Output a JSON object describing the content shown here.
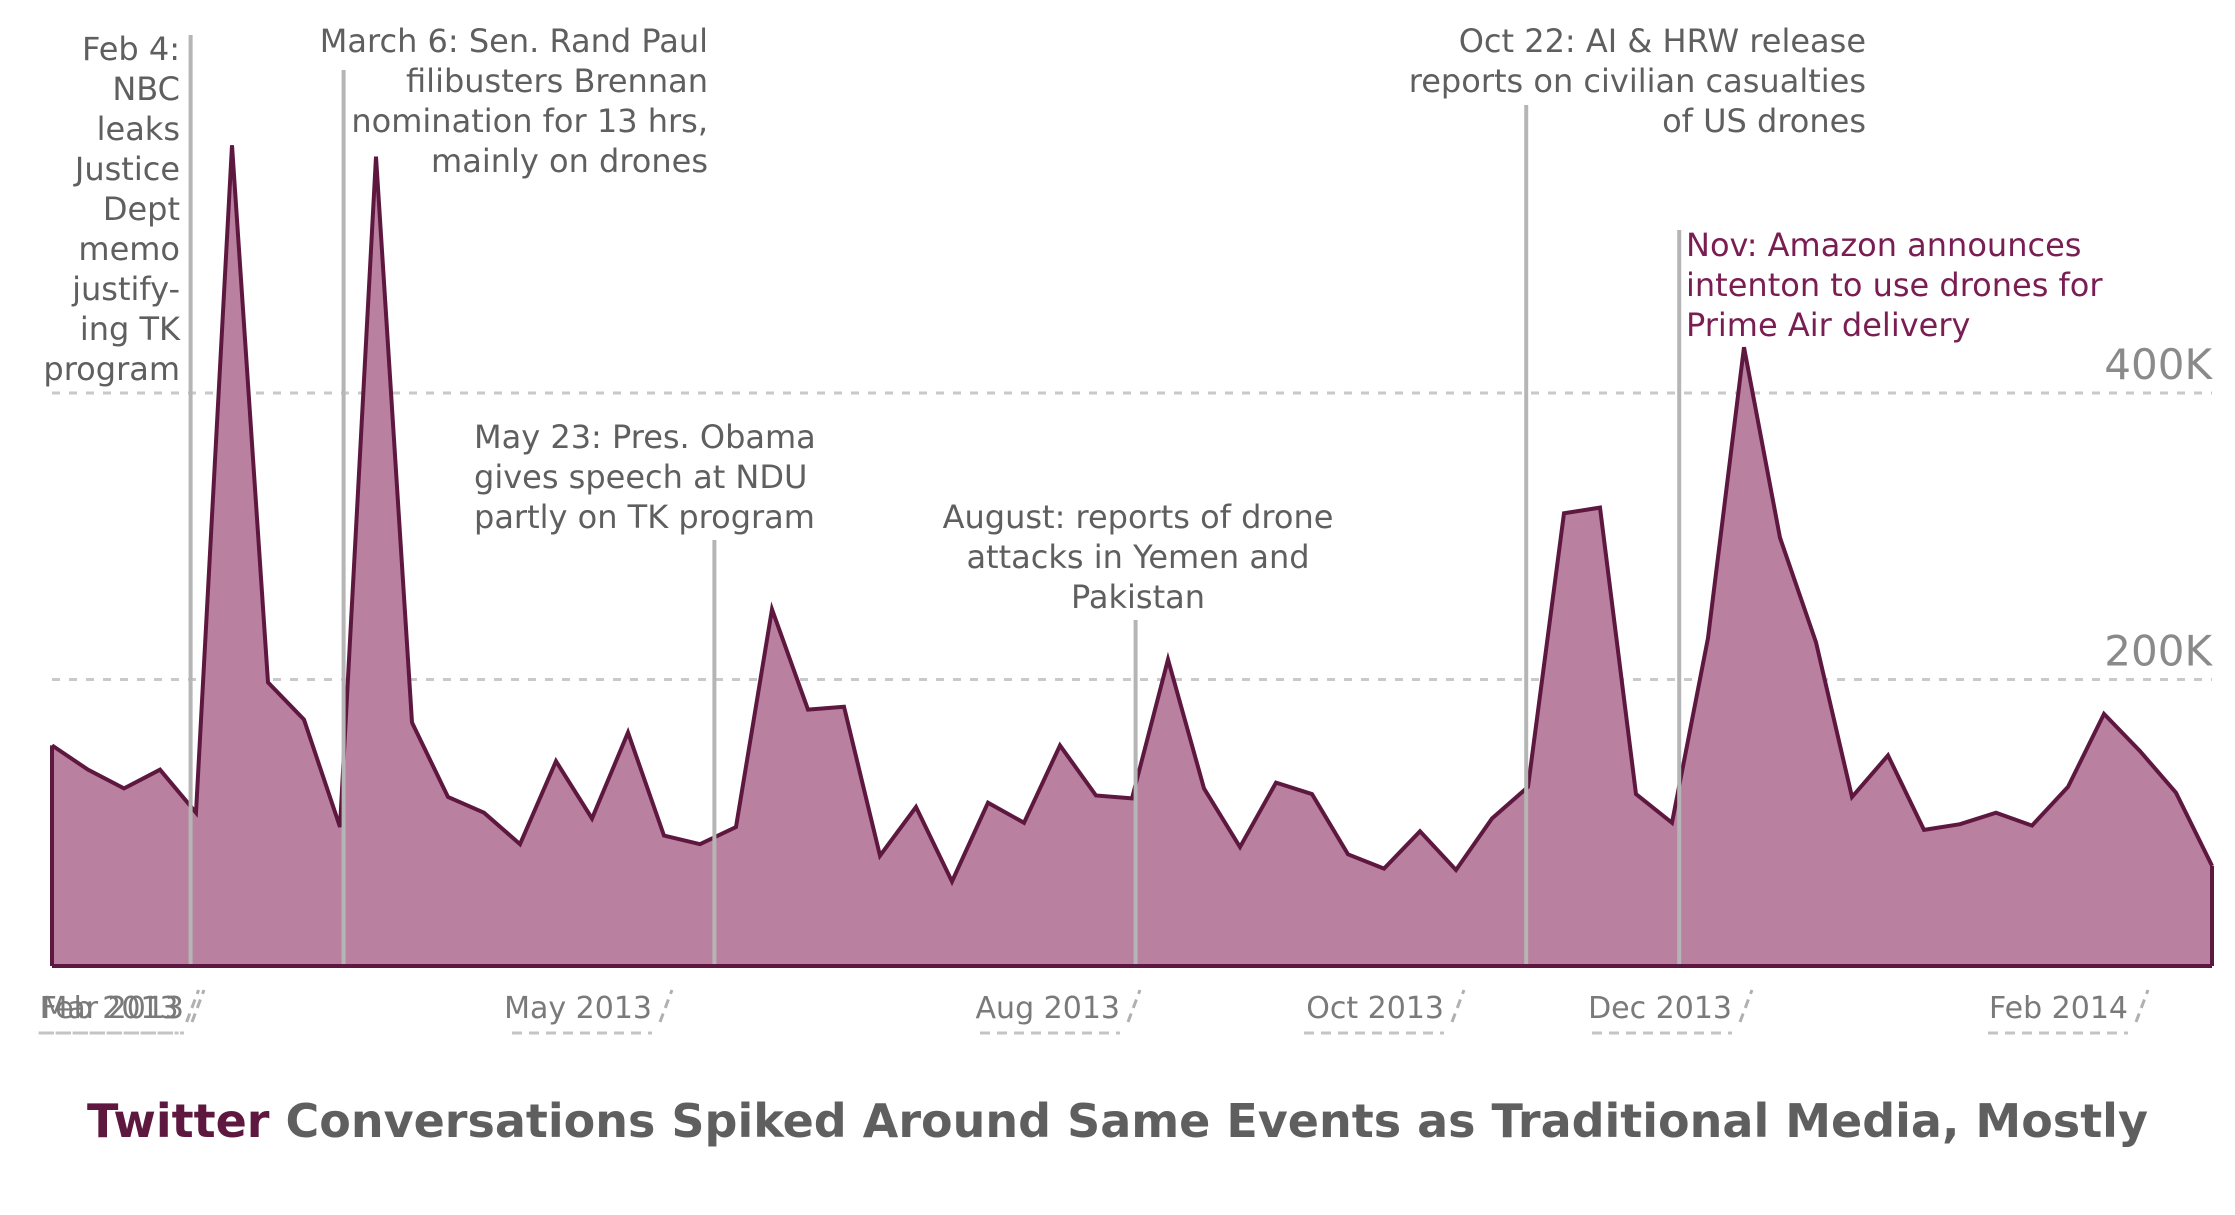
{
  "colors": {
    "area_fill": "#b9819f",
    "area_stroke": "#5e1840",
    "event_line": "#b5b5b5",
    "grid": "#c9c9c9",
    "text_gray": "#5f5f5f",
    "tick_text": "#7a7a7a",
    "accent_text": "#7a1d52"
  },
  "title": {
    "accent": "Twitter",
    "rest": " Conversations Spiked Around Same Events as Traditional Media, Mostly"
  },
  "chart_data": {
    "type": "area",
    "title": "Twitter Conversations Spiked Around Same Events as Traditional Media, Mostly",
    "xlabel": "",
    "ylabel": "",
    "x_unit": "weeks from start of Feb 2013",
    "x": [
      0,
      1,
      2,
      3,
      4,
      5,
      6,
      7,
      8,
      9,
      10,
      11,
      12,
      13,
      14,
      15,
      16,
      17,
      18,
      19,
      20,
      21,
      22,
      23,
      24,
      25,
      26,
      27,
      28,
      29,
      30,
      31,
      32,
      33,
      34,
      35,
      36,
      37,
      38,
      39,
      40,
      41,
      42,
      43,
      44,
      45,
      46,
      47,
      48,
      49,
      50,
      51,
      52,
      53,
      54,
      55,
      56,
      57,
      58,
      59,
      60
    ],
    "values": [
      154000,
      137000,
      124000,
      137000,
      107000,
      573000,
      198000,
      172000,
      97000,
      565000,
      170000,
      118000,
      107000,
      85000,
      143000,
      103000,
      163000,
      91000,
      85000,
      97000,
      249000,
      179000,
      181000,
      77000,
      111000,
      59000,
      114000,
      100000,
      154000,
      119000,
      117000,
      214000,
      124000,
      83000,
      128000,
      120000,
      78000,
      68000,
      94000,
      67000,
      103000,
      125000,
      316000,
      320000,
      120000,
      100000,
      229000,
      432000,
      299000,
      226000,
      118000,
      147000,
      95000,
      99000,
      107000,
      98000,
      125000,
      176000,
      150000,
      121000,
      70000
    ],
    "ylim": [
      0,
      400000
    ],
    "yticks": [
      {
        "value": 200000,
        "label": "200K"
      },
      {
        "value": 400000,
        "label": "400K"
      }
    ],
    "xticks": [
      {
        "x": 0,
        "label": "Feb 2013"
      },
      {
        "x": 4,
        "label": "Mar 2013"
      },
      {
        "x": 17,
        "label": "May 2013"
      },
      {
        "x": 30,
        "label": "Aug 2013"
      },
      {
        "x": 39,
        "label": "Oct 2013"
      },
      {
        "x": 47,
        "label": "Dec 2013"
      },
      {
        "x": 58,
        "label": "Feb 2014"
      }
    ],
    "grid": true,
    "annotations": [
      {
        "name": "annotation-nbc-memo",
        "x": 3.85,
        "align": "right",
        "highlight": false,
        "lines": [
          "Feb 4:",
          "NBC",
          "leaks",
          "Justice",
          "Dept",
          "memo",
          "justify-",
          "ing TK",
          "program"
        ]
      },
      {
        "name": "annotation-rand-paul",
        "x": 8.1,
        "align": "right",
        "highlight": false,
        "lines": [
          "March 6: Sen. Rand Paul",
          "filibusters Brennan",
          "nomination for 13 hrs,",
          "mainly on drones"
        ]
      },
      {
        "name": "annotation-obama-ndu",
        "x": 18.4,
        "align": "left-of-line",
        "highlight": false,
        "lines": [
          "May 23: Pres. Obama",
          "gives speech at NDU",
          "partly on TK program"
        ]
      },
      {
        "name": "annotation-yemen-pakistan",
        "x": 30.1,
        "align": "center",
        "highlight": false,
        "lines": [
          "August: reports of drone",
          "attacks in Yemen and",
          "Pakistan"
        ]
      },
      {
        "name": "annotation-ai-hrw",
        "x": 40.95,
        "align": "right",
        "highlight": false,
        "lines": [
          "Oct 22: AI & HRW release",
          "reports on civilian casualties",
          "of US drones"
        ]
      },
      {
        "name": "annotation-amazon",
        "x": 45.2,
        "align": "left",
        "highlight": true,
        "lines": [
          "Nov: Amazon announces",
          "intenton to use drones for",
          "Prime Air delivery"
        ]
      }
    ]
  }
}
